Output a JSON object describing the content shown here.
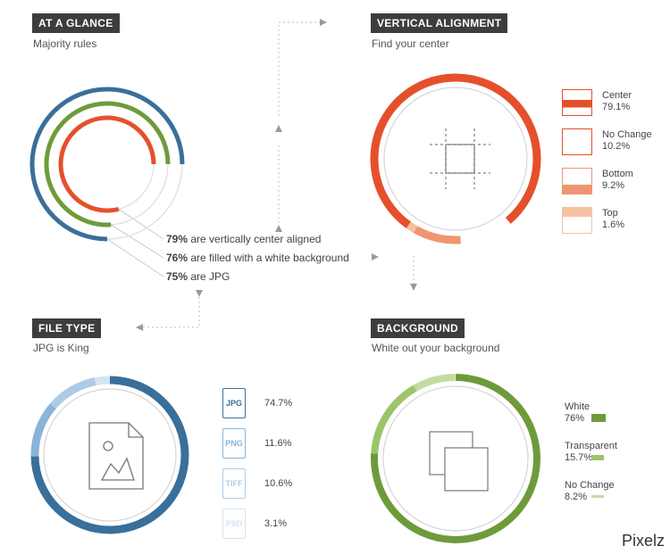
{
  "sections": {
    "glance": {
      "title": "AT A GLANCE",
      "subtitle": "Majority rules"
    },
    "vertical": {
      "title": "VERTICAL ALIGNMENT",
      "subtitle": "Find your center"
    },
    "filetype": {
      "title": "FILE TYPE",
      "subtitle": "JPG is King"
    },
    "background": {
      "title": "BACKGROUND",
      "subtitle": "White out your background"
    }
  },
  "brand": "Pixelz",
  "colors": {
    "blue": "#3a6f9a",
    "lightblue": "#8ab4d8",
    "green": "#6e9b3a",
    "lightgreen": "#9cc46a",
    "red": "#e5502c",
    "orange": "#ef9670",
    "peach": "#f6c1a3",
    "gray": "#cfcfcf"
  },
  "chart_data": [
    {
      "type": "pie",
      "name": "at-a-glance",
      "series": [
        {
          "value": 79,
          "label_pct": "79%",
          "label_text": "are vertically center aligned",
          "color": "#e5502c"
        },
        {
          "value": 76,
          "label_pct": "76%",
          "label_text": "are filled with a white background",
          "color": "#6e9b3a"
        },
        {
          "value": 75,
          "label_pct": "75%",
          "label_text": "are JPG",
          "color": "#3a6f9a"
        }
      ]
    },
    {
      "type": "pie",
      "name": "vertical-alignment",
      "slices": [
        {
          "label": "Center",
          "display": "79.1%",
          "value": 79.1,
          "color": "#e5502c"
        },
        {
          "label": "No Change",
          "display": "10.2%",
          "value": 10.2,
          "color": "#ffffff"
        },
        {
          "label": "Bottom",
          "display": "9.2%",
          "value": 9.2,
          "color": "#ef9670"
        },
        {
          "label": "Top",
          "display": "1.6%",
          "value": 1.6,
          "color": "#f6c1a3"
        }
      ]
    },
    {
      "type": "pie",
      "name": "file-type",
      "slices": [
        {
          "label": "JPG",
          "display": "74.7%",
          "value": 74.7,
          "color": "#3a6f9a"
        },
        {
          "label": "PNG",
          "display": "11.6%",
          "value": 11.6,
          "color": "#8ab4d8"
        },
        {
          "label": "TIFF",
          "display": "10.6%",
          "value": 10.6,
          "color": "#aecbe5"
        },
        {
          "label": "PSD",
          "display": "3.1%",
          "value": 3.1,
          "color": "#d3e4f2"
        }
      ]
    },
    {
      "type": "pie",
      "name": "background",
      "slices": [
        {
          "label": "White",
          "display": "76%",
          "value": 76,
          "color": "#6e9b3a"
        },
        {
          "label": "Transparent",
          "display": "15.7%",
          "value": 15.7,
          "color": "#9cc46a"
        },
        {
          "label": "No Change",
          "display": "8.2%",
          "value": 8.2,
          "color": "#c2dca0"
        }
      ]
    }
  ]
}
